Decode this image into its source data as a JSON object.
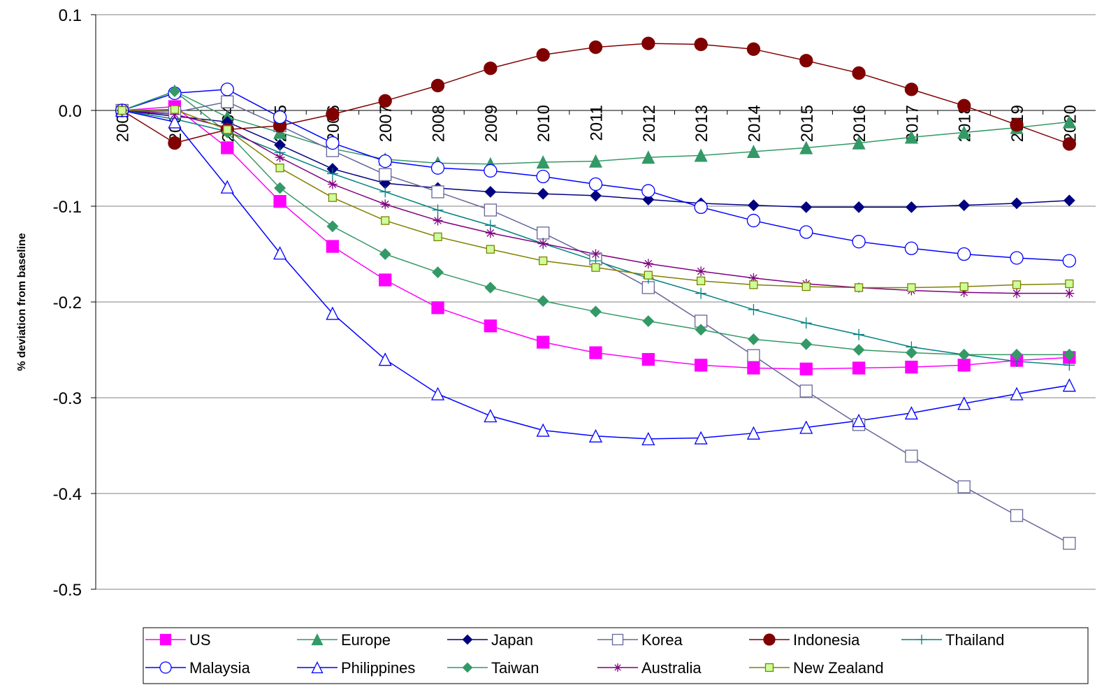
{
  "chart_data": {
    "type": "line",
    "y_label": "% deviation from baseline",
    "categories": [
      "2002",
      "2003",
      "2004",
      "2005",
      "2006",
      "2007",
      "2008",
      "2009",
      "2010",
      "2011",
      "2012",
      "2013",
      "2014",
      "2015",
      "2016",
      "2017",
      "2018",
      "2019",
      "2020"
    ],
    "ylim": [
      -0.5,
      0.1
    ],
    "yticks": [
      -0.5,
      -0.4,
      -0.3,
      -0.2,
      -0.1,
      {
        "value": 0,
        "label": "0.0"
      },
      0.1
    ],
    "grid": true,
    "legend": "bottom",
    "series": [
      {
        "name": "US",
        "color": "#ff00ff",
        "marker": "square",
        "marker_fill": "#ff00ff",
        "values": [
          0,
          0.004,
          -0.039,
          -0.095,
          -0.142,
          -0.177,
          -0.206,
          -0.225,
          -0.242,
          -0.253,
          -0.26,
          -0.266,
          -0.269,
          -0.27,
          -0.269,
          -0.268,
          -0.266,
          -0.261,
          -0.258
        ]
      },
      {
        "name": "Europe",
        "color": "#339966",
        "marker": "triangle",
        "marker_fill": "#339966",
        "values": [
          0,
          0.02,
          -0.007,
          -0.023,
          -0.04,
          -0.051,
          -0.055,
          -0.056,
          -0.054,
          -0.053,
          -0.049,
          -0.047,
          -0.043,
          -0.039,
          -0.034,
          -0.028,
          -0.023,
          -0.018,
          -0.012
        ]
      },
      {
        "name": "Japan",
        "color": "#000080",
        "marker": "diamond",
        "marker_fill": "#000080",
        "values": [
          0,
          -0.006,
          -0.012,
          -0.036,
          -0.061,
          -0.076,
          -0.081,
          -0.085,
          -0.087,
          -0.089,
          -0.093,
          -0.097,
          -0.099,
          -0.101,
          -0.101,
          -0.101,
          -0.099,
          -0.097,
          -0.094
        ]
      },
      {
        "name": "Korea",
        "color": "#666699",
        "marker": "square",
        "marker_fill": "#ffffff",
        "values": [
          0,
          -0.002,
          0.009,
          -0.016,
          -0.042,
          -0.067,
          -0.085,
          -0.104,
          -0.128,
          -0.155,
          -0.185,
          -0.22,
          -0.256,
          -0.293,
          -0.328,
          -0.361,
          -0.393,
          -0.423,
          -0.452
        ]
      },
      {
        "name": "Indonesia",
        "color": "#800000",
        "marker": "circle",
        "marker_fill": "#800000",
        "values": [
          0,
          -0.034,
          -0.02,
          -0.016,
          -0.004,
          0.01,
          0.026,
          0.044,
          0.058,
          0.066,
          0.07,
          0.069,
          0.064,
          0.052,
          0.039,
          0.022,
          0.005,
          -0.015,
          -0.035
        ]
      },
      {
        "name": "Thailand",
        "color": "#008080",
        "marker": "plus",
        "marker_fill": "#008080",
        "values": [
          0,
          -0.009,
          -0.022,
          -0.044,
          -0.066,
          -0.085,
          -0.104,
          -0.12,
          -0.139,
          -0.157,
          -0.175,
          -0.191,
          -0.208,
          -0.222,
          -0.234,
          -0.247,
          -0.255,
          -0.262,
          -0.266
        ]
      },
      {
        "name": "Malaysia",
        "color": "#0000ff",
        "marker": "circle",
        "marker_fill": "#ffffff",
        "values": [
          0,
          0.018,
          0.022,
          -0.007,
          -0.034,
          -0.053,
          -0.06,
          -0.063,
          -0.069,
          -0.077,
          -0.084,
          -0.101,
          -0.115,
          -0.127,
          -0.137,
          -0.144,
          -0.15,
          -0.154,
          -0.157
        ]
      },
      {
        "name": "Philippines",
        "color": "#0000ff",
        "marker": "triangle",
        "marker_fill": "#ffffff",
        "values": [
          0,
          -0.012,
          -0.08,
          -0.149,
          -0.212,
          -0.26,
          -0.296,
          -0.319,
          -0.334,
          -0.34,
          -0.343,
          -0.342,
          -0.337,
          -0.331,
          -0.324,
          -0.316,
          -0.306,
          -0.296,
          -0.287
        ]
      },
      {
        "name": "Taiwan",
        "color": "#339966",
        "marker": "diamond",
        "marker_fill": "#339966",
        "values": [
          0,
          0.02,
          -0.023,
          -0.081,
          -0.121,
          -0.15,
          -0.169,
          -0.185,
          -0.199,
          -0.21,
          -0.22,
          -0.229,
          -0.239,
          -0.244,
          -0.25,
          -0.253,
          -0.255,
          -0.255,
          -0.255
        ]
      },
      {
        "name": "Australia",
        "color": "#800080",
        "marker": "star",
        "marker_fill": "#800080",
        "values": [
          0,
          -0.004,
          -0.018,
          -0.049,
          -0.077,
          -0.098,
          -0.115,
          -0.128,
          -0.139,
          -0.15,
          -0.16,
          -0.168,
          -0.175,
          -0.181,
          -0.185,
          -0.188,
          -0.19,
          -0.191,
          -0.191
        ]
      },
      {
        "name": "New Zealand",
        "color": "#808000",
        "marker": "square",
        "marker_fill": "#ccff99",
        "values": [
          0,
          0.001,
          -0.02,
          -0.06,
          -0.091,
          -0.115,
          -0.132,
          -0.145,
          -0.157,
          -0.164,
          -0.172,
          -0.178,
          -0.182,
          -0.184,
          -0.185,
          -0.185,
          -0.184,
          -0.182,
          -0.181
        ]
      }
    ]
  }
}
